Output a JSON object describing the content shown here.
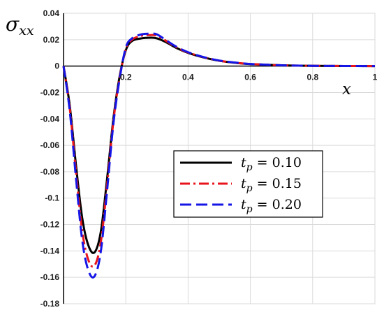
{
  "chart_data": {
    "type": "line",
    "title": "",
    "ylabel": "σxx",
    "xlabel": "x",
    "xlim": [
      0,
      1
    ],
    "ylim": [
      -0.18,
      0.04
    ],
    "grid": true,
    "xticks": [
      0,
      0.2,
      0.4,
      0.6,
      0.8,
      1
    ],
    "xtick_labels": [
      "0",
      "0.2",
      "0.4",
      "0.6",
      "0.8",
      "1"
    ],
    "yticks": [
      0.04,
      0.02,
      0,
      -0.02,
      -0.04,
      -0.06,
      -0.08,
      -0.1,
      -0.12,
      -0.14,
      -0.16,
      -0.18
    ],
    "ytick_labels": [
      "0.04",
      "0.02",
      "0",
      "-0.02",
      "-0.04",
      "-0.06",
      "-0.08",
      "-0.1",
      "-0.12",
      "-0.14",
      "-0.16",
      "-0.18"
    ],
    "legend_position": "center-right",
    "x": [
      0,
      0.02,
      0.04,
      0.06,
      0.08,
      0.1,
      0.12,
      0.14,
      0.16,
      0.18,
      0.2,
      0.22,
      0.25,
      0.28,
      0.3,
      0.33,
      0.36,
      0.4,
      0.45,
      0.5,
      0.55,
      0.6,
      0.7,
      0.8,
      0.9,
      1.0
    ],
    "series": [
      {
        "name": "t_p = 0.10",
        "legend_var": "t",
        "legend_sub": "p",
        "legend_rest": " = 0.10",
        "color": "#000000",
        "dash": "solid",
        "values": [
          0,
          -0.03,
          -0.075,
          -0.115,
          -0.136,
          -0.141,
          -0.125,
          -0.085,
          -0.04,
          -0.008,
          0.012,
          0.019,
          0.021,
          0.0215,
          0.021,
          0.018,
          0.014,
          0.01,
          0.0065,
          0.004,
          0.0025,
          0.0015,
          0.0006,
          0.0002,
          0.0001,
          0
        ]
      },
      {
        "name": "t_p = 0.15",
        "legend_var": "t",
        "legend_sub": "p",
        "legend_rest": " = 0.15",
        "color": "#e8141c",
        "dash": "dashdot",
        "values": [
          0,
          -0.032,
          -0.08,
          -0.125,
          -0.147,
          -0.151,
          -0.133,
          -0.09,
          -0.042,
          -0.009,
          0.013,
          0.02,
          0.023,
          0.0235,
          0.023,
          0.019,
          0.0145,
          0.0103,
          0.0067,
          0.0041,
          0.0026,
          0.0016,
          0.0006,
          0.0002,
          0.0001,
          0
        ]
      },
      {
        "name": "t_p = 0.20",
        "legend_var": "t",
        "legend_sub": "p",
        "legend_rest": " = 0.20",
        "color": "#1515e6",
        "dash": "longdash",
        "values": [
          0,
          -0.034,
          -0.085,
          -0.132,
          -0.155,
          -0.159,
          -0.14,
          -0.094,
          -0.044,
          -0.01,
          0.014,
          0.021,
          0.024,
          0.0245,
          0.024,
          0.0195,
          0.015,
          0.0105,
          0.0068,
          0.0042,
          0.0027,
          0.0016,
          0.0006,
          0.0002,
          0.0001,
          0
        ]
      }
    ]
  }
}
